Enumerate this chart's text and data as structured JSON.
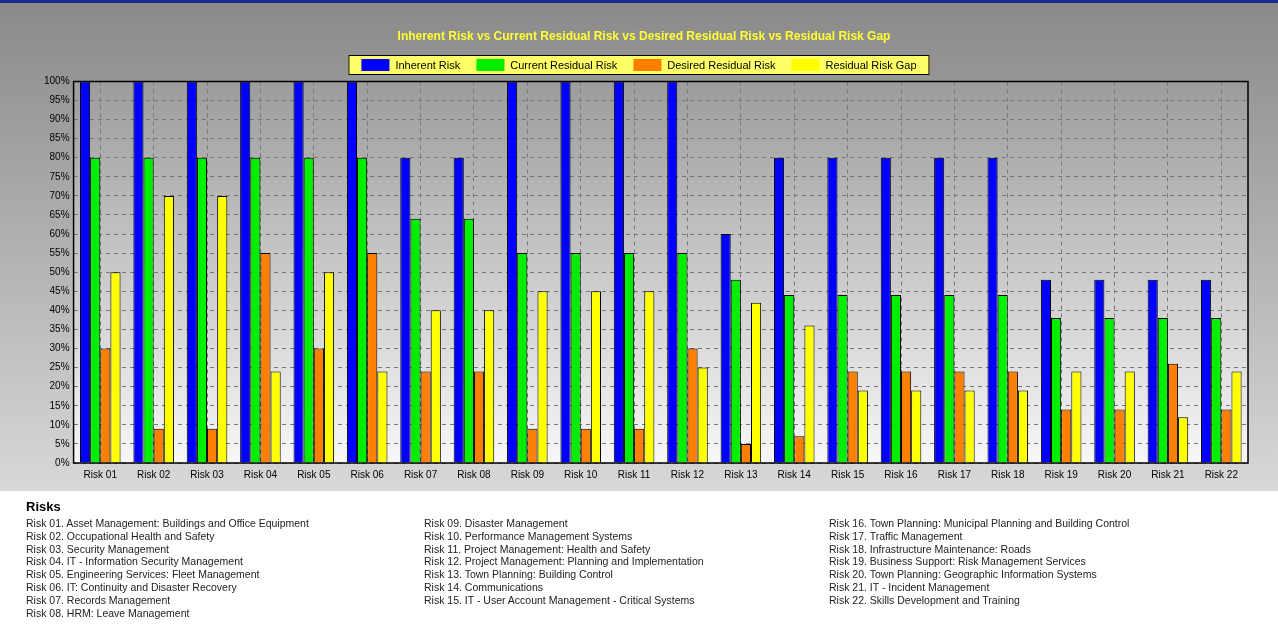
{
  "chart_data": {
    "type": "bar",
    "title": "Inherent Risk vs Current Residual Risk vs Desired Residual Risk vs Residual Risk Gap",
    "categories": [
      "Risk 01",
      "Risk 02",
      "Risk 03",
      "Risk 04",
      "Risk 05",
      "Risk 06",
      "Risk 07",
      "Risk 08",
      "Risk 09",
      "Risk 10",
      "Risk 11",
      "Risk 12",
      "Risk 13",
      "Risk 14",
      "Risk 15",
      "Risk 16",
      "Risk 17",
      "Risk 18",
      "Risk 19",
      "Risk 20",
      "Risk 21",
      "Risk 22"
    ],
    "series": [
      {
        "name": "Inherent Risk",
        "color": "#0000ff",
        "values": [
          100,
          100,
          100,
          100,
          100,
          100,
          80,
          80,
          100,
          100,
          100,
          100,
          60,
          80,
          80,
          80,
          80,
          80,
          48,
          48,
          48,
          48
        ]
      },
      {
        "name": "Current Residual Risk",
        "color": "#00ee00",
        "values": [
          80,
          80,
          80,
          80,
          80,
          80,
          64,
          64,
          55,
          55,
          55,
          55,
          48,
          44,
          44,
          44,
          44,
          44,
          38,
          38,
          38,
          38
        ]
      },
      {
        "name": "Desired Residual Risk",
        "color": "#ff7f00",
        "values": [
          30,
          9,
          9,
          55,
          30,
          55,
          24,
          24,
          9,
          9,
          9,
          30,
          5,
          7,
          24,
          24,
          24,
          24,
          14,
          14,
          26,
          14
        ]
      },
      {
        "name": "Residual Risk Gap",
        "color": "#ffff00",
        "values": [
          50,
          70,
          70,
          24,
          50,
          24,
          40,
          40,
          45,
          45,
          45,
          25,
          42,
          36,
          19,
          19,
          19,
          19,
          24,
          24,
          12,
          24
        ]
      }
    ],
    "ylim": [
      0,
      100
    ],
    "yticks": [
      {
        "value": 0,
        "label": "0%"
      },
      {
        "value": 5,
        "label": "5%"
      },
      {
        "value": 10,
        "label": "10%"
      },
      {
        "value": 15,
        "label": "15%"
      },
      {
        "value": 20,
        "label": "20%"
      },
      {
        "value": 25,
        "label": "25%"
      },
      {
        "value": 30,
        "label": "30%"
      },
      {
        "value": 35,
        "label": "35%"
      },
      {
        "value": 40,
        "label": "40%"
      },
      {
        "value": 45,
        "label": "45%"
      },
      {
        "value": 50,
        "label": "50%"
      },
      {
        "value": 55,
        "label": "55%"
      },
      {
        "value": 60,
        "label": "60%"
      },
      {
        "value": 65,
        "label": "65%"
      },
      {
        "value": 70,
        "label": "70%"
      },
      {
        "value": 75,
        "label": "75%"
      },
      {
        "value": 80,
        "label": "80%"
      },
      {
        "value": 85,
        "label": "85%"
      },
      {
        "value": 90,
        "label": "90%"
      },
      {
        "value": 95,
        "label": "95%"
      },
      {
        "value": 100,
        "label": "100%"
      }
    ],
    "grid": true,
    "legend": "top",
    "annotations": [
      "Risks",
      "Risk 01. Asset Management: Buildings and Office Equipment",
      "Risk 02. Occupational Health and Safety",
      "Risk 03. Security Management",
      "Risk 04. IT - Information Security Management",
      "Risk 05. Engineering Services: Fleet Management",
      "Risk 06. IT: Continuity and Disaster Recovery",
      "Risk 07. Records Management",
      "Risk 08. HRM: Leave Management",
      "Risk 09. Disaster Management",
      "Risk 10. Performance Management Systems",
      "Risk 11. Project Management: Health and Safety",
      "Risk 12. Project Management: Planning and Implementation",
      "Risk 13. Town Planning: Building Control",
      "Risk 14. Communications",
      "Risk 15. IT - User Account Management - Critical Systems",
      "Risk 16. Town Planning: Municipal Planning and Building Control",
      "Risk 17. Traffic Management",
      "Risk 18. Infrastructure Maintenance: Roads",
      "Risk 19. Business Support: Risk Management Services",
      "Risk 20. Town Planning: Geographic Information Systems",
      "Risk 21. IT - Incident Management",
      "Risk 22. Skills Development and Training"
    ]
  }
}
